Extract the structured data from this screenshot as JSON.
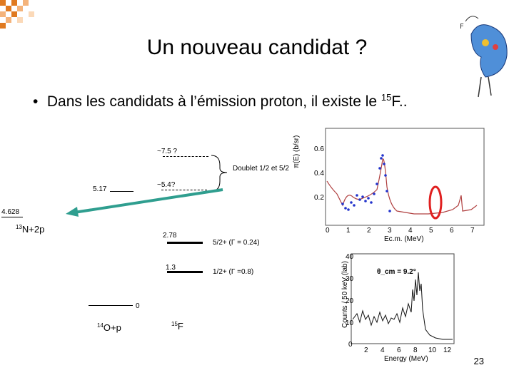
{
  "slide": {
    "title": "Un nouveau candidat ?",
    "bullet_text": "Dans les candidats à l’émission proton, il existe le ",
    "bullet_sup": "15",
    "bullet_end": "F..",
    "page_number": "23"
  },
  "level_scheme": {
    "label_7_5": "~7.5 ?",
    "label_5_4": "~5.4?",
    "doublet": "Doublet 1/2 et 5/2",
    "label_5_17": "5.17",
    "label_4_628": "4.628",
    "n13_sup": "13",
    "n13_text": "N+2p",
    "label_2_78": "2.78",
    "state_5_2": "5/2+ (Γ = 0.24)",
    "label_1_3": "1.3",
    "state_1_2": "1/2+ (Γ =0.8)",
    "label_0": "0",
    "o14_sup": "14",
    "o14_text": "O+p",
    "f15_sup": "15",
    "f15_text": "F"
  },
  "plot_top": {
    "ylabel": "π(E) (b/sr)",
    "yticks": [
      "0.6",
      "0.4",
      "0.2"
    ],
    "xticks": [
      "0",
      "1",
      "2",
      "3",
      "4",
      "5",
      "6",
      "7"
    ],
    "xlabel": "Ec.m. (MeV)"
  },
  "plot_bottom": {
    "ylabel": "Counts / 50 keV (lab)",
    "yticks": [
      "40",
      "30",
      "20",
      "10",
      "0"
    ],
    "xticks": [
      "2",
      "4",
      "6",
      "8",
      "10",
      "12"
    ],
    "xlabel": "Energy (MeV)",
    "inset": "θ_cm = 9.2°"
  },
  "colors": {
    "arrow": "#2f9e8f",
    "highlight": "#e02020",
    "points": "#2233cc",
    "curve": "#b04040"
  },
  "icons": {
    "corner": "checker-pattern",
    "mascot": "cartoon-bird-character"
  }
}
